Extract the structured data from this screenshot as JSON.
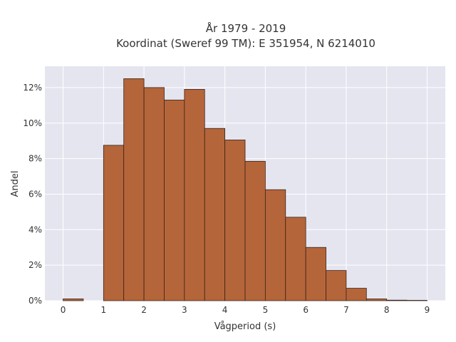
{
  "chart_data": {
    "type": "bar",
    "title_lines": [
      "År 1979 - 2019",
      "Koordinat (Sweref 99 TM): E 351954, N 6214010"
    ],
    "xlabel": "Vågperiod (s)",
    "ylabel": "Andel",
    "bin_width": 0.5,
    "bins": [
      {
        "x0": 0.0,
        "value": 0.1
      },
      {
        "x0": 0.5,
        "value": 0.0
      },
      {
        "x0": 1.0,
        "value": 8.75
      },
      {
        "x0": 1.5,
        "value": 12.5
      },
      {
        "x0": 2.0,
        "value": 12.0
      },
      {
        "x0": 2.5,
        "value": 11.3
      },
      {
        "x0": 3.0,
        "value": 11.9
      },
      {
        "x0": 3.5,
        "value": 9.7
      },
      {
        "x0": 4.0,
        "value": 9.05
      },
      {
        "x0": 4.5,
        "value": 7.85
      },
      {
        "x0": 5.0,
        "value": 6.25
      },
      {
        "x0": 5.5,
        "value": 4.7
      },
      {
        "x0": 6.0,
        "value": 3.0
      },
      {
        "x0": 6.5,
        "value": 1.7
      },
      {
        "x0": 7.0,
        "value": 0.7
      },
      {
        "x0": 7.5,
        "value": 0.1
      },
      {
        "x0": 8.0,
        "value": 0.03
      },
      {
        "x0": 8.5,
        "value": 0.02
      }
    ],
    "xlim": [
      -0.45,
      9.45
    ],
    "ylim": [
      0,
      13.2
    ],
    "xticks": [
      0,
      1,
      2,
      3,
      4,
      5,
      6,
      7,
      8,
      9
    ],
    "xtick_labels": [
      "0",
      "1",
      "2",
      "3",
      "4",
      "5",
      "6",
      "7",
      "8",
      "9"
    ],
    "yticks": [
      0,
      2,
      4,
      6,
      8,
      10,
      12
    ],
    "ytick_labels": [
      "0%",
      "2%",
      "4%",
      "6%",
      "8%",
      "10%",
      "12%"
    ],
    "grid": true,
    "colors": {
      "bar_fill": "#B5653A",
      "bar_stroke": "#3a2418",
      "plot_bg": "#E5E5F0",
      "grid": "#ffffff",
      "text": "#333333"
    }
  }
}
